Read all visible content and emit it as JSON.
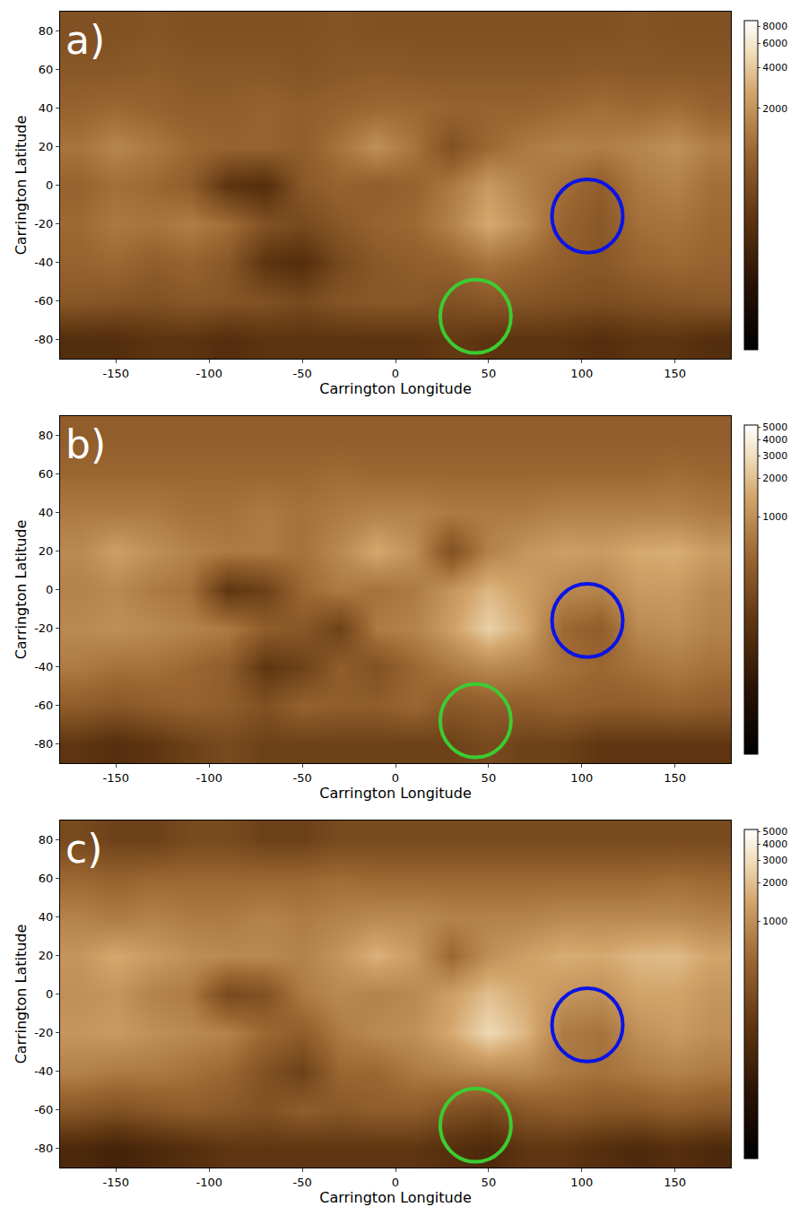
{
  "chart_data": [
    {
      "type": "heatmap",
      "panel": "a)",
      "x_label": "Carrington Longitude",
      "y_label": "Carrington Latitude",
      "x": [
        -170,
        -150,
        -130,
        -110,
        -90,
        -70,
        -50,
        -30,
        -10,
        10,
        30,
        50,
        70,
        90,
        110,
        130,
        150,
        170
      ],
      "y": [
        -80,
        -60,
        -40,
        -20,
        0,
        20,
        40,
        60,
        80
      ],
      "z": [
        [
          250,
          250,
          300,
          300,
          250,
          300,
          300,
          300,
          300,
          300,
          350,
          300,
          300,
          300,
          250,
          300,
          300,
          250
        ],
        [
          700,
          650,
          600,
          700,
          650,
          600,
          500,
          650,
          700,
          700,
          600,
          700,
          650,
          600,
          550,
          600,
          650,
          700
        ],
        [
          900,
          1000,
          800,
          900,
          700,
          300,
          250,
          500,
          700,
          800,
          900,
          1200,
          1000,
          800,
          700,
          900,
          1000,
          900
        ],
        [
          1000,
          1300,
          1200,
          1400,
          1100,
          600,
          500,
          700,
          900,
          1000,
          1500,
          2800,
          1800,
          900,
          700,
          1100,
          1200,
          1000
        ],
        [
          900,
          1100,
          1000,
          800,
          300,
          250,
          700,
          900,
          800,
          900,
          1300,
          2200,
          1500,
          1100,
          800,
          1300,
          1500,
          1100
        ],
        [
          1200,
          1600,
          1300,
          1000,
          900,
          900,
          800,
          1200,
          1900,
          1200,
          600,
          1000,
          1300,
          1500,
          1400,
          1600,
          1900,
          1400
        ],
        [
          900,
          1000,
          900,
          800,
          800,
          900,
          800,
          900,
          1000,
          1000,
          900,
          900,
          900,
          1000,
          1100,
          1000,
          1100,
          900
        ],
        [
          700,
          700,
          750,
          700,
          700,
          700,
          650,
          700,
          750,
          700,
          700,
          700,
          700,
          700,
          750,
          700,
          700,
          700
        ],
        [
          600,
          600,
          650,
          600,
          600,
          600,
          600,
          650,
          600,
          600,
          600,
          600,
          600,
          600,
          600,
          650,
          600,
          600
        ]
      ],
      "xlim": [
        -180,
        180
      ],
      "xticks": [
        -150,
        -100,
        -50,
        0,
        50,
        100,
        150
      ],
      "ylim": [
        -90,
        90
      ],
      "yticks": [
        -80,
        -60,
        -40,
        -20,
        0,
        20,
        40,
        60,
        80
      ],
      "colorbar": {
        "range": [
          34,
          8800
        ],
        "ticks": [
          2000,
          4000,
          6000,
          8000
        ],
        "log": true
      },
      "circles": [
        {
          "center": [
            103,
            -16
          ],
          "radius": 19,
          "color": "#0a14e6"
        },
        {
          "center": [
            43,
            -68
          ],
          "radius": 19,
          "color": "#3ccc32"
        }
      ]
    },
    {
      "type": "heatmap",
      "panel": "b)",
      "x_label": "Carrington Longitude",
      "y_label": "Carrington Latitude",
      "x": [
        -170,
        -150,
        -130,
        -110,
        -90,
        -70,
        -50,
        -30,
        -10,
        10,
        30,
        50,
        70,
        90,
        110,
        130,
        150,
        170
      ],
      "y": [
        -80,
        -60,
        -40,
        -20,
        0,
        20,
        40,
        60,
        80
      ],
      "z": [
        [
          150,
          120,
          150,
          200,
          250,
          200,
          200,
          200,
          200,
          200,
          200,
          250,
          200,
          200,
          150,
          150,
          150,
          150
        ],
        [
          400,
          350,
          400,
          450,
          400,
          300,
          450,
          400,
          400,
          500,
          350,
          400,
          400,
          450,
          400,
          400,
          450,
          400
        ],
        [
          700,
          600,
          600,
          500,
          400,
          150,
          200,
          400,
          300,
          500,
          700,
          900,
          800,
          600,
          500,
          600,
          700,
          600
        ],
        [
          900,
          1000,
          900,
          800,
          700,
          400,
          350,
          200,
          700,
          800,
          1300,
          2500,
          1500,
          500,
          400,
          900,
          1000,
          800
        ],
        [
          800,
          900,
          700,
          600,
          150,
          200,
          500,
          700,
          600,
          700,
          1100,
          1800,
          1300,
          900,
          800,
          1200,
          1200,
          900
        ],
        [
          900,
          1300,
          1000,
          800,
          700,
          700,
          600,
          900,
          1500,
          1000,
          300,
          800,
          1100,
          1300,
          1200,
          1500,
          1600,
          1200
        ],
        [
          700,
          700,
          700,
          600,
          600,
          700,
          600,
          700,
          800,
          800,
          700,
          700,
          700,
          800,
          800,
          800,
          800,
          700
        ],
        [
          500,
          500,
          500,
          500,
          500,
          500,
          500,
          550,
          500,
          500,
          500,
          500,
          500,
          500,
          500,
          500,
          550,
          500
        ],
        [
          400,
          400,
          400,
          400,
          400,
          400,
          400,
          400,
          400,
          400,
          400,
          400,
          400,
          400,
          400,
          400,
          400,
          400
        ]
      ],
      "xlim": [
        -180,
        180
      ],
      "xticks": [
        -150,
        -100,
        -50,
        0,
        50,
        100,
        150
      ],
      "ylim": [
        -90,
        90
      ],
      "yticks": [
        -80,
        -60,
        -40,
        -20,
        0,
        20,
        40,
        60,
        80
      ],
      "colorbar": {
        "range": [
          14,
          5200
        ],
        "ticks": [
          1000,
          2000,
          3000,
          4000,
          5000
        ],
        "log": true
      },
      "circles": [
        {
          "center": [
            103,
            -16
          ],
          "radius": 19,
          "color": "#0a14e6"
        },
        {
          "center": [
            43,
            -68
          ],
          "radius": 19,
          "color": "#3ccc32"
        }
      ]
    },
    {
      "type": "heatmap",
      "panel": "c)",
      "x_label": "Carrington Longitude",
      "y_label": "Carrington Latitude",
      "x": [
        -170,
        -150,
        -130,
        -110,
        -90,
        -70,
        -50,
        -30,
        -10,
        10,
        30,
        50,
        70,
        90,
        110,
        130,
        150,
        170
      ],
      "y": [
        -80,
        -60,
        -40,
        -20,
        0,
        20,
        40,
        60,
        80
      ],
      "z": [
        [
          100,
          80,
          100,
          120,
          150,
          150,
          150,
          150,
          150,
          150,
          120,
          100,
          150,
          150,
          120,
          100,
          120,
          100
        ],
        [
          350,
          300,
          350,
          400,
          350,
          300,
          400,
          350,
          400,
          400,
          300,
          250,
          350,
          400,
          350,
          350,
          400,
          350
        ],
        [
          800,
          700,
          700,
          600,
          500,
          300,
          200,
          500,
          500,
          700,
          800,
          900,
          900,
          700,
          600,
          700,
          800,
          700
        ],
        [
          1100,
          1200,
          1000,
          900,
          800,
          500,
          400,
          700,
          900,
          1000,
          1500,
          2800,
          1800,
          700,
          600,
          1000,
          1200,
          1000
        ],
        [
          1000,
          1100,
          800,
          700,
          250,
          300,
          700,
          900,
          800,
          900,
          1300,
          2000,
          1500,
          1100,
          1000,
          1400,
          1400,
          1100
        ],
        [
          1100,
          1500,
          1200,
          1000,
          900,
          900,
          800,
          1100,
          1700,
          1200,
          500,
          1000,
          1300,
          1600,
          1500,
          1800,
          1900,
          1400
        ],
        [
          800,
          700,
          800,
          700,
          700,
          800,
          700,
          800,
          900,
          900,
          800,
          800,
          800,
          900,
          900,
          900,
          900,
          800
        ],
        [
          500,
          450,
          500,
          500,
          500,
          500,
          500,
          550,
          500,
          500,
          500,
          500,
          500,
          500,
          500,
          500,
          550,
          500
        ],
        [
          250,
          200,
          200,
          250,
          250,
          200,
          200,
          250,
          250,
          250,
          250,
          250,
          250,
          250,
          250,
          250,
          250,
          250
        ]
      ],
      "xlim": [
        -180,
        180
      ],
      "xticks": [
        -150,
        -100,
        -50,
        0,
        50,
        100,
        150
      ],
      "ylim": [
        -90,
        90
      ],
      "yticks": [
        -80,
        -60,
        -40,
        -20,
        0,
        20,
        40,
        60,
        80
      ],
      "colorbar": {
        "range": [
          14,
          5200
        ],
        "ticks": [
          1000,
          2000,
          3000,
          4000,
          5000
        ],
        "log": true
      },
      "circles": [
        {
          "center": [
            103,
            -16
          ],
          "radius": 19,
          "color": "#0a14e6"
        },
        {
          "center": [
            43,
            -68
          ],
          "radius": 19,
          "color": "#3ccc32"
        }
      ]
    }
  ]
}
